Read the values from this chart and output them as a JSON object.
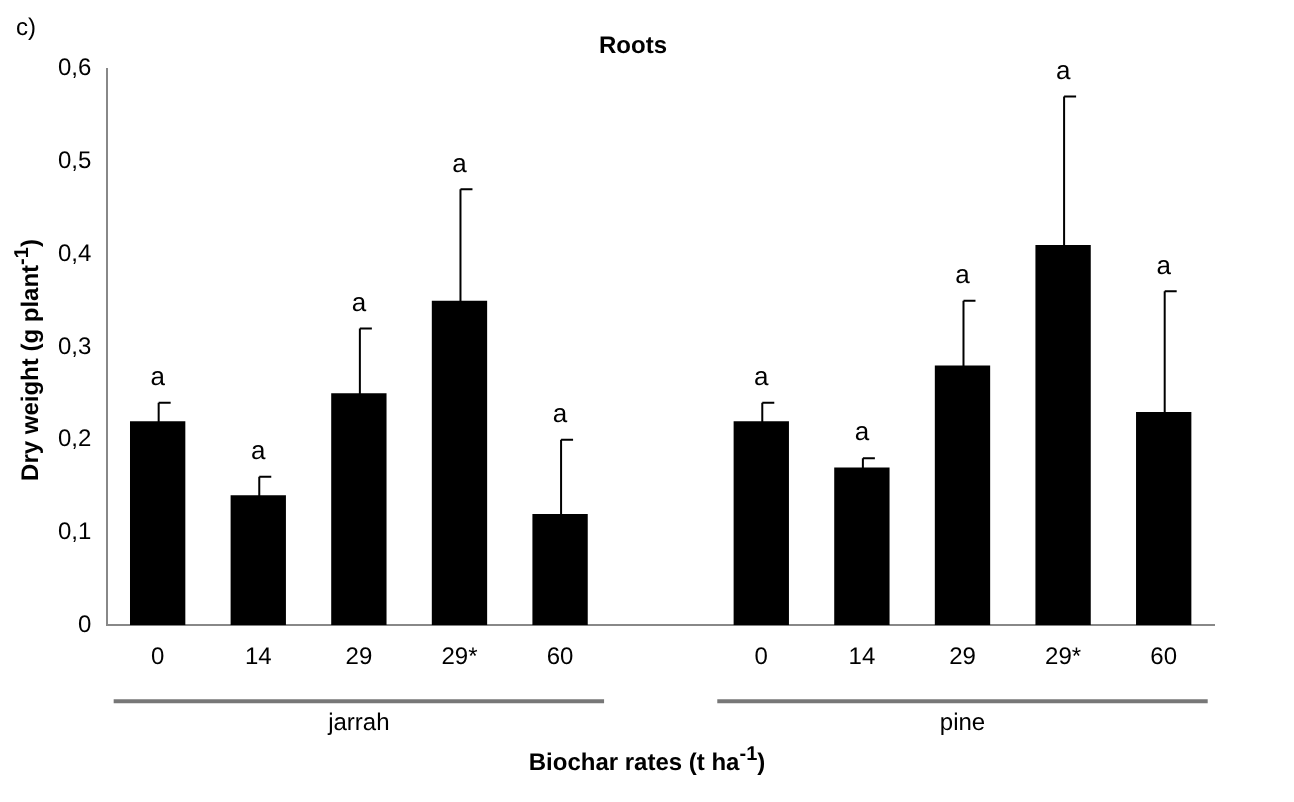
{
  "chart_data": {
    "type": "bar",
    "title": "Roots",
    "xlabel": "Biochar rates (t ha$^{-1}$)",
    "ylabel": "Dry  weight (g plant$^{-1}$)",
    "annotations": [
      "c)",
      "jarrah",
      "pine",
      "a",
      "a",
      "a",
      "a",
      "a",
      "a",
      "a",
      "a",
      "a",
      "a"
    ],
    "categories": [
      "0",
      "14",
      "29",
      "29*",
      "60",
      null,
      "0",
      "14",
      "29",
      "29*",
      "60"
    ],
    "values": [
      0.22,
      0.14,
      0.25,
      0.35,
      0.12,
      null,
      0.22,
      0.17,
      0.28,
      0.41,
      0.23
    ],
    "errors": [
      0.02,
      0.02,
      0.07,
      0.12,
      0.08,
      null,
      0.02,
      0.01,
      0.07,
      0.16,
      0.13
    ],
    "color": "#000000",
    "ylim": [
      0,
      0.6
    ],
    "yticks": [
      0,
      {
        "value": 0.1,
        "label": "0,1"
      },
      {
        "value": 0.2,
        "label": "0,2"
      },
      {
        "value": 0.3,
        "label": "0,3"
      },
      {
        "value": 0.4,
        "label": "0,4"
      },
      {
        "value": 0.5,
        "label": "0,5"
      },
      {
        "value": 0.6,
        "label": "0,6"
      }
    ],
    "grid": false,
    "legend": false
  }
}
